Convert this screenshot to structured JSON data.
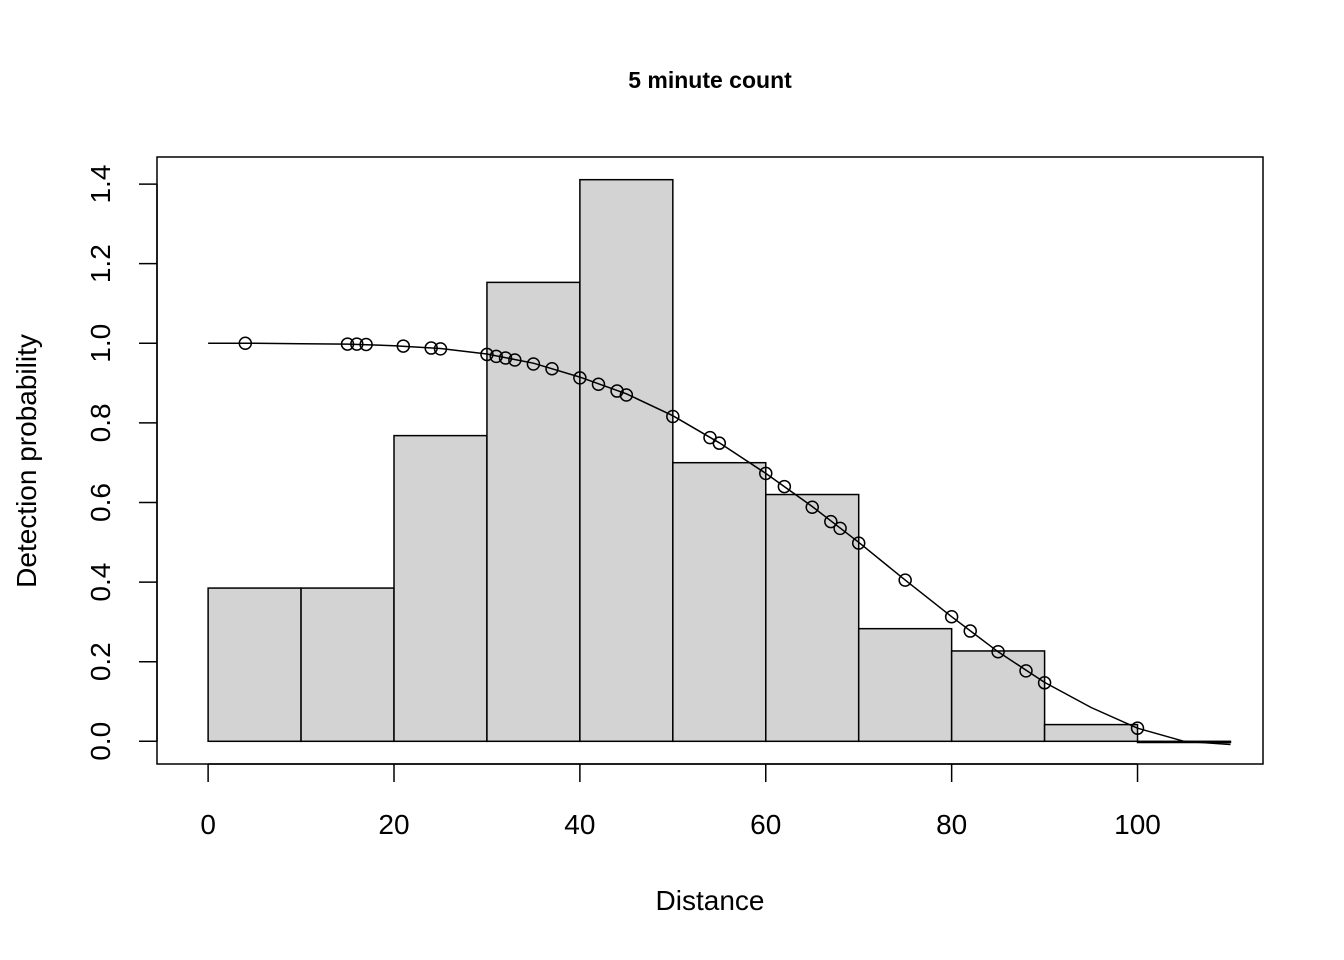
{
  "chart_data": {
    "type": "bar",
    "title": "5 minute count",
    "xlabel": "Distance",
    "ylabel": "Detection probability",
    "xlim": [
      -5.5,
      113.5
    ],
    "ylim": [
      -0.057,
      1.468
    ],
    "x_ticks": [
      "0",
      "20",
      "40",
      "60",
      "80",
      "100"
    ],
    "y_ticks": [
      "0.0",
      "0.2",
      "0.4",
      "0.6",
      "0.8",
      "1.0",
      "1.2",
      "1.4"
    ],
    "grid": false,
    "legend": "none",
    "histogram": {
      "bin_edges": [
        0,
        10,
        20,
        30,
        40,
        50,
        60,
        70,
        80,
        90,
        100,
        110
      ],
      "values": [
        0.385,
        0.385,
        0.768,
        1.153,
        1.411,
        0.7,
        0.62,
        0.283,
        0.227,
        0.042,
        -0.003
      ],
      "fill": "#d3d3d3"
    },
    "fitted_curve": {
      "x": [
        0,
        5,
        10,
        15,
        20,
        25,
        30,
        35,
        40,
        45,
        50,
        55,
        60,
        65,
        70,
        75,
        80,
        85,
        90,
        95,
        100,
        105,
        110
      ],
      "y": [
        1.0,
        1.0,
        0.999,
        0.998,
        0.994,
        0.987,
        0.973,
        0.95,
        0.915,
        0.873,
        0.818,
        0.75,
        0.673,
        0.59,
        0.5,
        0.405,
        0.313,
        0.225,
        0.148,
        0.085,
        0.033,
        0.0,
        -0.008
      ]
    },
    "points": {
      "x": [
        4,
        15,
        16,
        17,
        21,
        24,
        25,
        30,
        31,
        32,
        33,
        35,
        37,
        40,
        42,
        44,
        45,
        50,
        54,
        55,
        60,
        62,
        65,
        67,
        68,
        70,
        75,
        80,
        82,
        85,
        88,
        90,
        100
      ],
      "y": [
        1.0,
        0.998,
        0.998,
        0.997,
        0.993,
        0.988,
        0.986,
        0.972,
        0.967,
        0.963,
        0.958,
        0.948,
        0.936,
        0.913,
        0.897,
        0.88,
        0.87,
        0.816,
        0.763,
        0.749,
        0.673,
        0.64,
        0.588,
        0.552,
        0.535,
        0.498,
        0.405,
        0.313,
        0.277,
        0.225,
        0.177,
        0.147,
        0.033
      ]
    }
  }
}
